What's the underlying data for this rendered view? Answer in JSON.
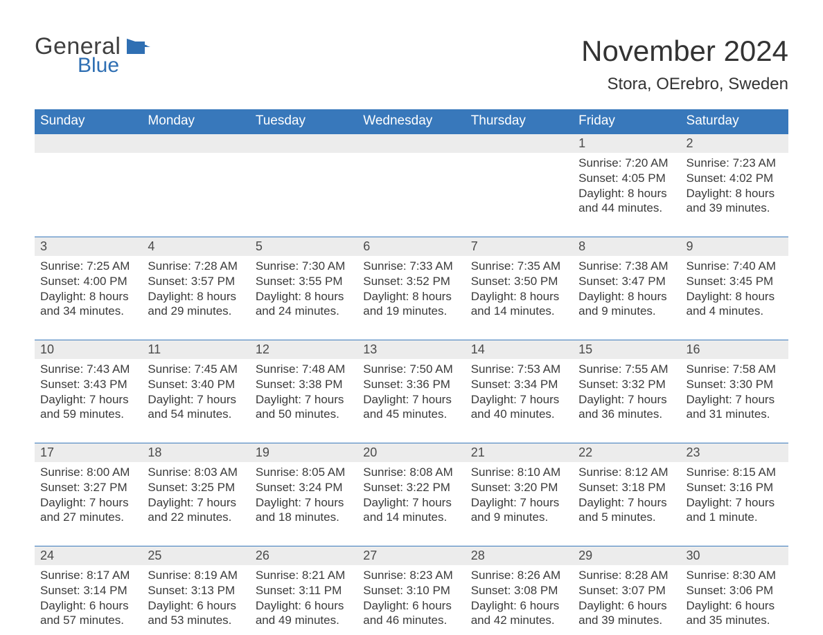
{
  "brand": {
    "part1": "General",
    "part2": "Blue",
    "brand_color": "#2f6fb3",
    "text_color": "#3f3f3f"
  },
  "title": "November 2024",
  "subtitle": "Stora, OErebro, Sweden",
  "colors": {
    "header_bg": "#3878bb",
    "header_text": "#ffffff",
    "daynum_bg": "#ececec",
    "body_text": "#3a3a3a",
    "rule": "#3878bb",
    "page_bg": "#ffffff"
  },
  "fontsizes": {
    "title": 42,
    "subtitle": 24,
    "dow": 19,
    "daynum": 18,
    "body": 17,
    "logo": 34
  },
  "days_of_week": [
    "Sunday",
    "Monday",
    "Tuesday",
    "Wednesday",
    "Thursday",
    "Friday",
    "Saturday"
  ],
  "weeks": [
    {
      "short": false,
      "days": [
        {
          "n": "",
          "sunrise": "",
          "sunset": "",
          "daylight": ""
        },
        {
          "n": "",
          "sunrise": "",
          "sunset": "",
          "daylight": ""
        },
        {
          "n": "",
          "sunrise": "",
          "sunset": "",
          "daylight": ""
        },
        {
          "n": "",
          "sunrise": "",
          "sunset": "",
          "daylight": ""
        },
        {
          "n": "",
          "sunrise": "",
          "sunset": "",
          "daylight": ""
        },
        {
          "n": "1",
          "sunrise": "7:20 AM",
          "sunset": "4:05 PM",
          "daylight": "8 hours and 44 minutes."
        },
        {
          "n": "2",
          "sunrise": "7:23 AM",
          "sunset": "4:02 PM",
          "daylight": "8 hours and 39 minutes."
        }
      ]
    },
    {
      "short": false,
      "days": [
        {
          "n": "3",
          "sunrise": "7:25 AM",
          "sunset": "4:00 PM",
          "daylight": "8 hours and 34 minutes."
        },
        {
          "n": "4",
          "sunrise": "7:28 AM",
          "sunset": "3:57 PM",
          "daylight": "8 hours and 29 minutes."
        },
        {
          "n": "5",
          "sunrise": "7:30 AM",
          "sunset": "3:55 PM",
          "daylight": "8 hours and 24 minutes."
        },
        {
          "n": "6",
          "sunrise": "7:33 AM",
          "sunset": "3:52 PM",
          "daylight": "8 hours and 19 minutes."
        },
        {
          "n": "7",
          "sunrise": "7:35 AM",
          "sunset": "3:50 PM",
          "daylight": "8 hours and 14 minutes."
        },
        {
          "n": "8",
          "sunrise": "7:38 AM",
          "sunset": "3:47 PM",
          "daylight": "8 hours and 9 minutes."
        },
        {
          "n": "9",
          "sunrise": "7:40 AM",
          "sunset": "3:45 PM",
          "daylight": "8 hours and 4 minutes."
        }
      ]
    },
    {
      "short": false,
      "days": [
        {
          "n": "10",
          "sunrise": "7:43 AM",
          "sunset": "3:43 PM",
          "daylight": "7 hours and 59 minutes."
        },
        {
          "n": "11",
          "sunrise": "7:45 AM",
          "sunset": "3:40 PM",
          "daylight": "7 hours and 54 minutes."
        },
        {
          "n": "12",
          "sunrise": "7:48 AM",
          "sunset": "3:38 PM",
          "daylight": "7 hours and 50 minutes."
        },
        {
          "n": "13",
          "sunrise": "7:50 AM",
          "sunset": "3:36 PM",
          "daylight": "7 hours and 45 minutes."
        },
        {
          "n": "14",
          "sunrise": "7:53 AM",
          "sunset": "3:34 PM",
          "daylight": "7 hours and 40 minutes."
        },
        {
          "n": "15",
          "sunrise": "7:55 AM",
          "sunset": "3:32 PM",
          "daylight": "7 hours and 36 minutes."
        },
        {
          "n": "16",
          "sunrise": "7:58 AM",
          "sunset": "3:30 PM",
          "daylight": "7 hours and 31 minutes."
        }
      ]
    },
    {
      "short": false,
      "days": [
        {
          "n": "17",
          "sunrise": "8:00 AM",
          "sunset": "3:27 PM",
          "daylight": "7 hours and 27 minutes."
        },
        {
          "n": "18",
          "sunrise": "8:03 AM",
          "sunset": "3:25 PM",
          "daylight": "7 hours and 22 minutes."
        },
        {
          "n": "19",
          "sunrise": "8:05 AM",
          "sunset": "3:24 PM",
          "daylight": "7 hours and 18 minutes."
        },
        {
          "n": "20",
          "sunrise": "8:08 AM",
          "sunset": "3:22 PM",
          "daylight": "7 hours and 14 minutes."
        },
        {
          "n": "21",
          "sunrise": "8:10 AM",
          "sunset": "3:20 PM",
          "daylight": "7 hours and 9 minutes."
        },
        {
          "n": "22",
          "sunrise": "8:12 AM",
          "sunset": "3:18 PM",
          "daylight": "7 hours and 5 minutes."
        },
        {
          "n": "23",
          "sunrise": "8:15 AM",
          "sunset": "3:16 PM",
          "daylight": "7 hours and 1 minute."
        }
      ]
    },
    {
      "short": true,
      "days": [
        {
          "n": "24",
          "sunrise": "8:17 AM",
          "sunset": "3:14 PM",
          "daylight": "6 hours and 57 minutes."
        },
        {
          "n": "25",
          "sunrise": "8:19 AM",
          "sunset": "3:13 PM",
          "daylight": "6 hours and 53 minutes."
        },
        {
          "n": "26",
          "sunrise": "8:21 AM",
          "sunset": "3:11 PM",
          "daylight": "6 hours and 49 minutes."
        },
        {
          "n": "27",
          "sunrise": "8:23 AM",
          "sunset": "3:10 PM",
          "daylight": "6 hours and 46 minutes."
        },
        {
          "n": "28",
          "sunrise": "8:26 AM",
          "sunset": "3:08 PM",
          "daylight": "6 hours and 42 minutes."
        },
        {
          "n": "29",
          "sunrise": "8:28 AM",
          "sunset": "3:07 PM",
          "daylight": "6 hours and 39 minutes."
        },
        {
          "n": "30",
          "sunrise": "8:30 AM",
          "sunset": "3:06 PM",
          "daylight": "6 hours and 35 minutes."
        }
      ]
    }
  ],
  "labels": {
    "sunrise": "Sunrise: ",
    "sunset": "Sunset: ",
    "daylight": "Daylight: "
  }
}
